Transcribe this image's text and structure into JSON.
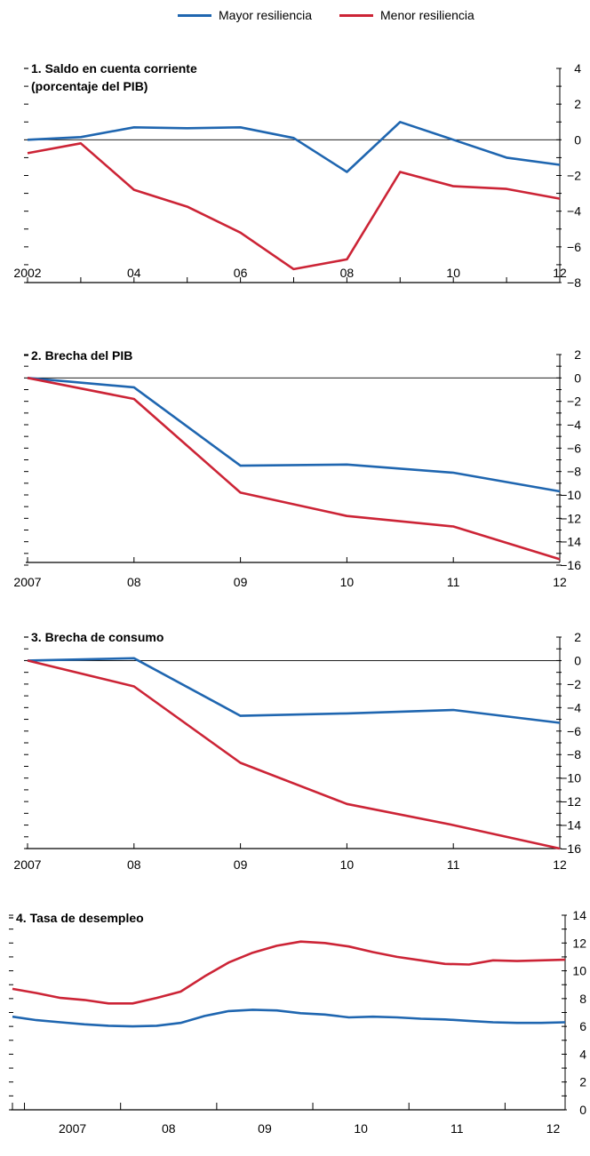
{
  "legend": [
    {
      "label": "Mayor resiliencia",
      "color": "#1f66b0"
    },
    {
      "label": "Menor resiliencia",
      "color": "#cc2436"
    }
  ],
  "chart_data": [
    {
      "type": "line",
      "title_lines": [
        "1. Saldo en cuenta corriente",
        "(porcentaje del PIB)"
      ],
      "x": [
        2002,
        2003,
        2004,
        2005,
        2006,
        2007,
        2008,
        2009,
        2010,
        2011,
        2012
      ],
      "xticks": [
        {
          "value": 2002,
          "label": "2002"
        },
        {
          "value": 2004,
          "label": "04"
        },
        {
          "value": 2006,
          "label": "06"
        },
        {
          "value": 2008,
          "label": "08"
        },
        {
          "value": 2010,
          "label": "10"
        },
        {
          "value": 2012,
          "label": "12"
        }
      ],
      "yticks": [
        4,
        2,
        0,
        -2,
        -4,
        -6,
        -8
      ],
      "ylim": [
        -8,
        4
      ],
      "series": [
        {
          "name": "Mayor resiliencia",
          "values": [
            0.0,
            0.15,
            0.7,
            0.65,
            0.7,
            0.1,
            -1.8,
            1.0,
            0.0,
            -1.0,
            -1.4
          ]
        },
        {
          "name": "Menor resiliencia",
          "values": [
            -0.75,
            -0.2,
            -2.8,
            -3.75,
            -5.2,
            -7.25,
            -6.7,
            -1.8,
            -2.6,
            -2.75,
            -3.3
          ]
        }
      ]
    },
    {
      "type": "line",
      "title_lines": [
        "2. Brecha del PIB"
      ],
      "x": [
        2007,
        2008,
        2009,
        2010,
        2011,
        2012
      ],
      "xticks": [
        {
          "value": 2007,
          "label": "2007"
        },
        {
          "value": 2008,
          "label": "08"
        },
        {
          "value": 2009,
          "label": "09"
        },
        {
          "value": 2010,
          "label": "10"
        },
        {
          "value": 2011,
          "label": "11"
        },
        {
          "value": 2012,
          "label": "12"
        }
      ],
      "yticks": [
        2,
        0,
        -2,
        -4,
        -6,
        -8,
        -10,
        -12,
        -14,
        -16
      ],
      "ylim": [
        -16,
        2
      ],
      "series": [
        {
          "name": "Mayor resiliencia",
          "values": [
            0,
            -0.8,
            -7.5,
            -7.4,
            -8.1,
            -9.7
          ]
        },
        {
          "name": "Menor resiliencia",
          "values": [
            0,
            -1.8,
            -9.8,
            -11.8,
            -12.7,
            -15.5
          ]
        }
      ]
    },
    {
      "type": "line",
      "title_lines": [
        "3. Brecha de consumo"
      ],
      "x": [
        2007,
        2008,
        2009,
        2010,
        2011,
        2012
      ],
      "xticks": [
        {
          "value": 2007,
          "label": "2007"
        },
        {
          "value": 2008,
          "label": "08"
        },
        {
          "value": 2009,
          "label": "09"
        },
        {
          "value": 2010,
          "label": "10"
        },
        {
          "value": 2011,
          "label": "11"
        },
        {
          "value": 2012,
          "label": "12"
        }
      ],
      "yticks": [
        2,
        0,
        -2,
        -4,
        -6,
        -8,
        -10,
        -12,
        -14,
        -16
      ],
      "ylim": [
        -16,
        2
      ],
      "series": [
        {
          "name": "Mayor resiliencia",
          "values": [
            0,
            0.2,
            -4.7,
            -4.5,
            -4.2,
            -5.3
          ]
        },
        {
          "name": "Menor resiliencia",
          "values": [
            0,
            -2.2,
            -8.7,
            -12.2,
            -14.0,
            -16.0
          ]
        }
      ]
    },
    {
      "type": "line",
      "title_lines": [
        "4. Tasa de desempleo"
      ],
      "x_unit": "quarters",
      "x_start": "2006Q4",
      "xticks": [
        {
          "label": "2007",
          "year": 2007
        },
        {
          "label": "08",
          "year": 2008
        },
        {
          "label": "09",
          "year": 2009
        },
        {
          "label": "10",
          "year": 2010
        },
        {
          "label": "11",
          "year": 2011
        },
        {
          "label": "12",
          "year": 2012
        }
      ],
      "yticks": [
        14,
        12,
        10,
        8,
        6,
        4,
        2,
        0
      ],
      "ylim": [
        0,
        14
      ],
      "series": [
        {
          "name": "Mayor resiliencia",
          "values": [
            6.7,
            6.45,
            6.3,
            6.15,
            6.05,
            6.0,
            6.05,
            6.25,
            6.75,
            7.1,
            7.2,
            7.15,
            6.95,
            6.85,
            6.65,
            6.7,
            6.65,
            6.55,
            6.5,
            6.4,
            6.3,
            6.25,
            6.25,
            6.3
          ]
        },
        {
          "name": "Menor resiliencia",
          "values": [
            8.7,
            8.4,
            8.05,
            7.9,
            7.65,
            7.65,
            8.05,
            8.5,
            9.6,
            10.6,
            11.3,
            11.8,
            12.1,
            12.0,
            11.75,
            11.35,
            11.0,
            10.75,
            10.5,
            10.45,
            10.75,
            10.7,
            10.75,
            10.8
          ]
        }
      ]
    }
  ]
}
